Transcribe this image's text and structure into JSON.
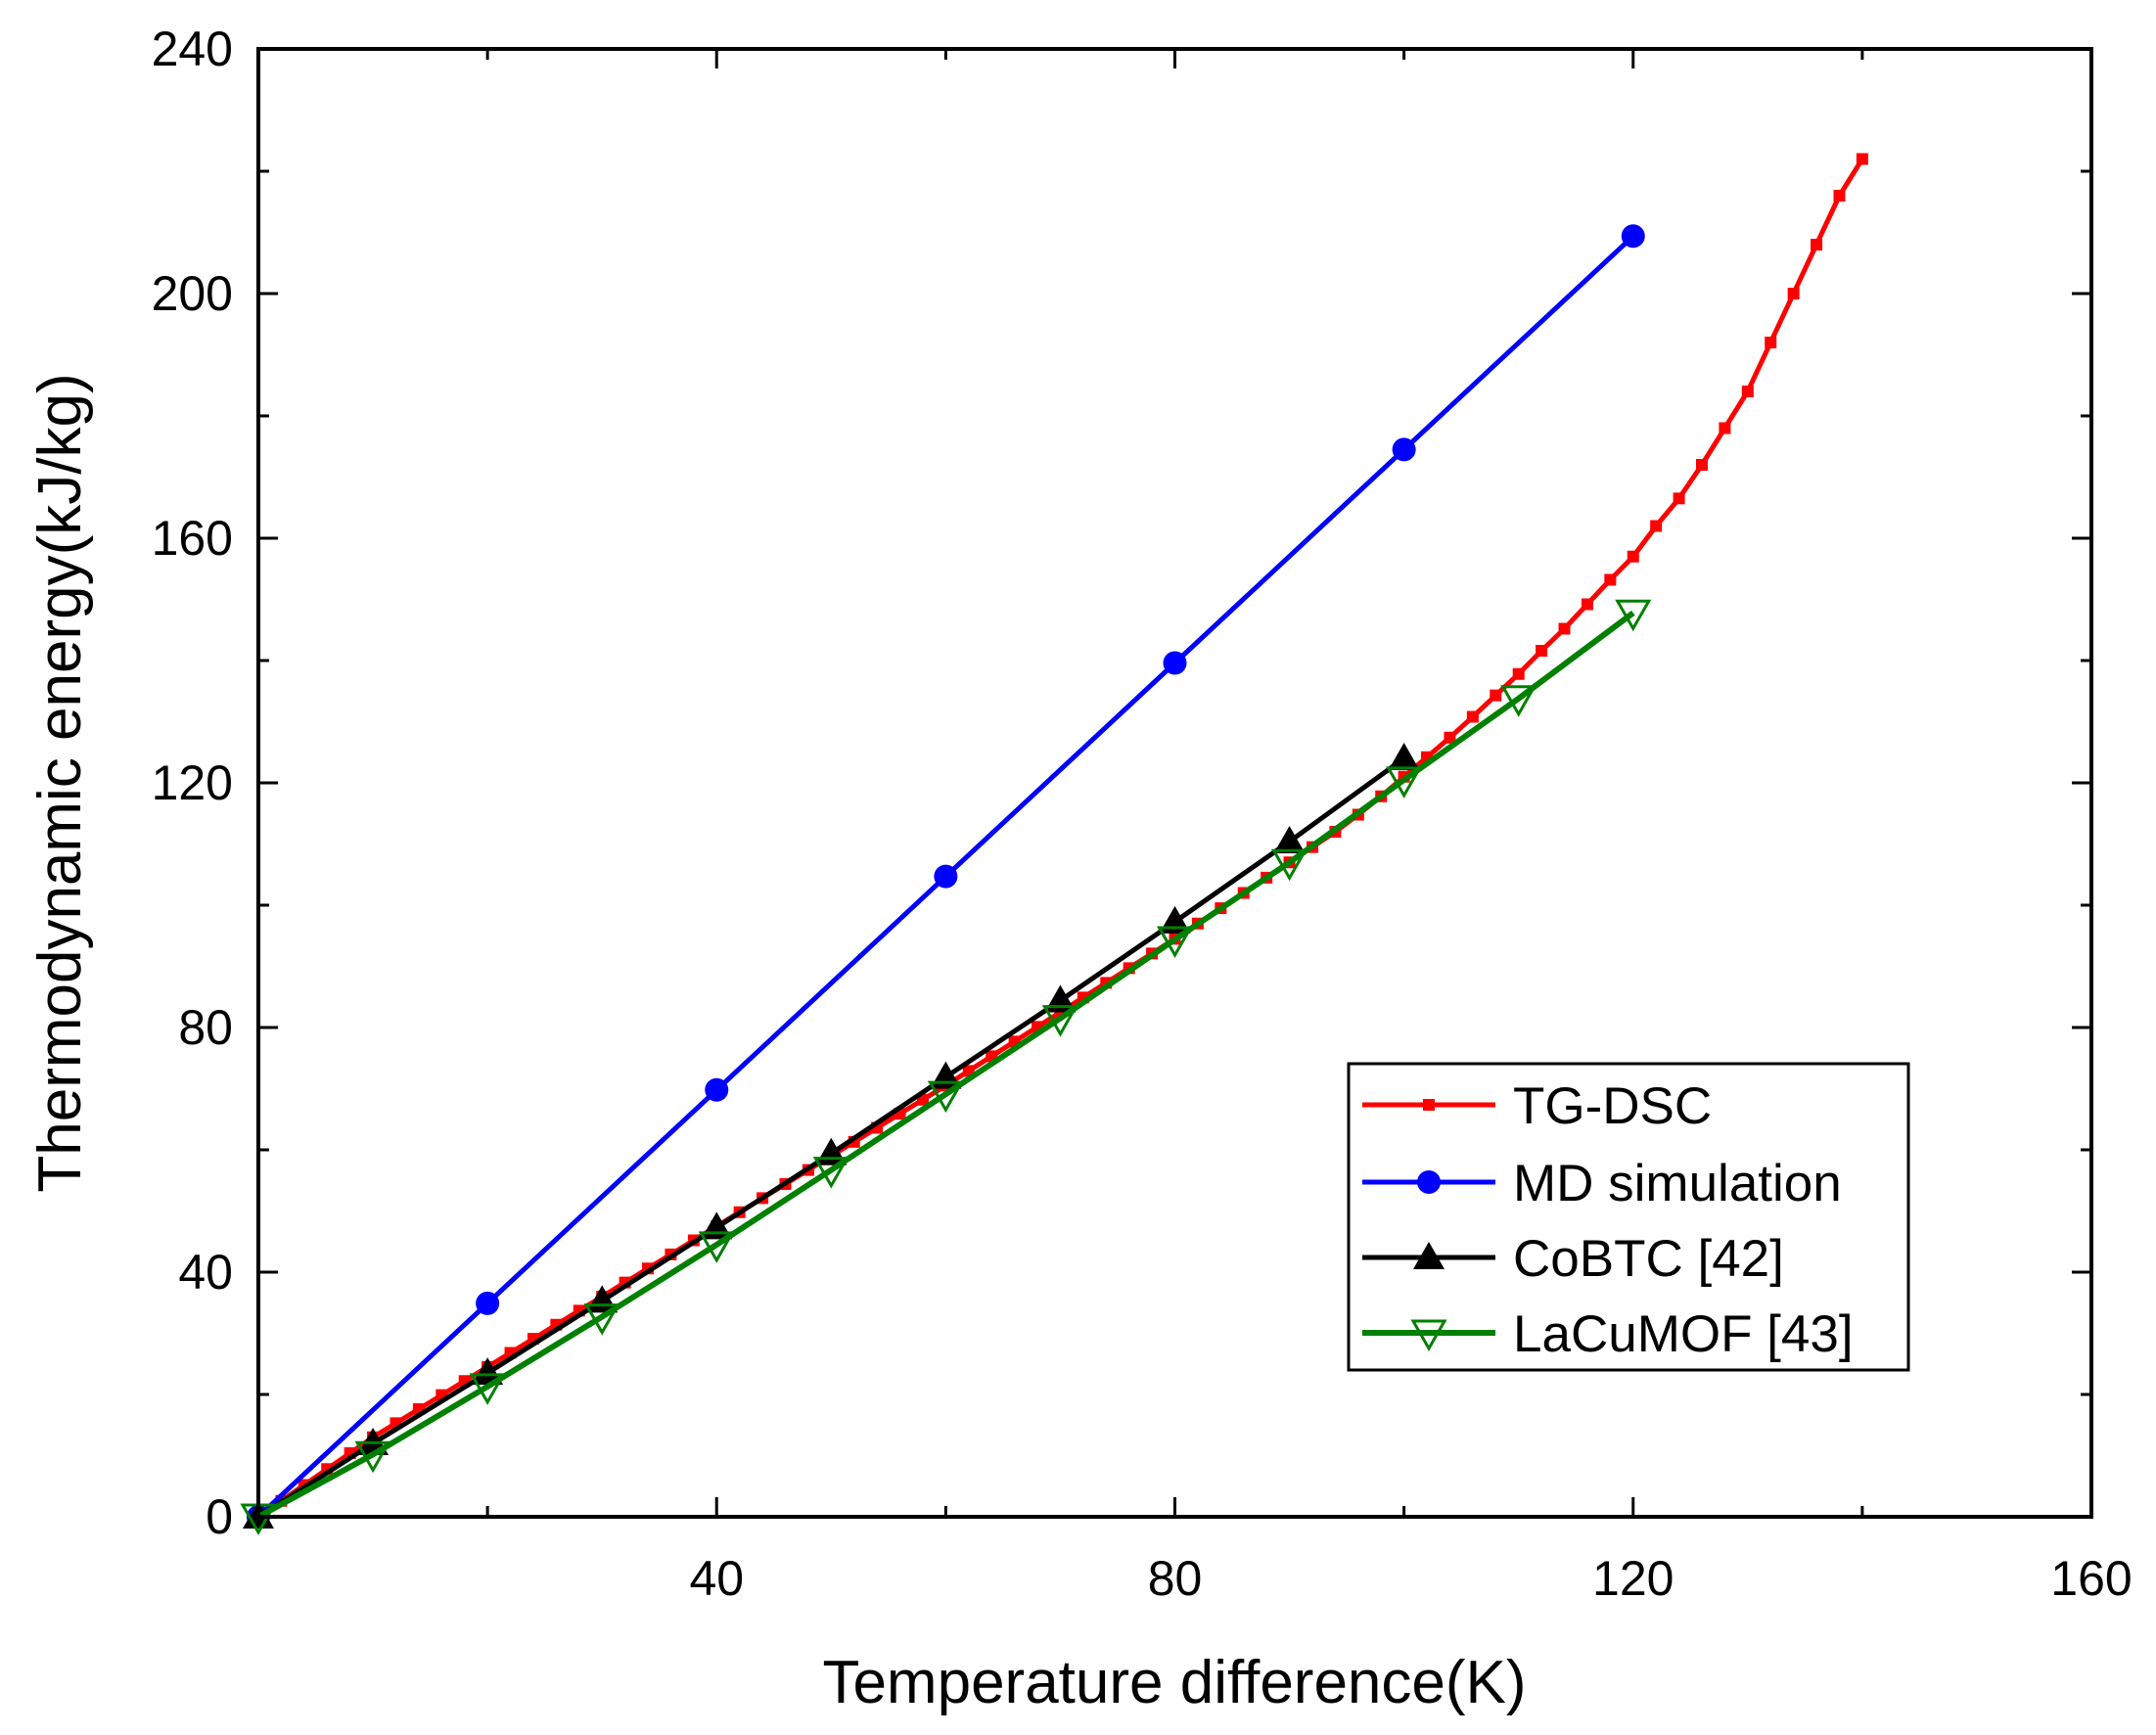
{
  "chart_data": {
    "type": "line",
    "title": "",
    "xlabel": "Temperature difference(K)",
    "ylabel": "Thermodynamic energy(kJ/kg)",
    "xlim": [
      0,
      160
    ],
    "ylim": [
      0,
      240
    ],
    "xticks": [
      40,
      80,
      120,
      160
    ],
    "yticks": [
      0,
      40,
      80,
      120,
      160,
      200,
      240
    ],
    "x_minor_step": 20,
    "y_minor_step": 20,
    "grid": false,
    "legend_position": "lower-right",
    "series": [
      {
        "name": "TG-DSC",
        "color": "#ff0000",
        "marker": "square-small",
        "x": [
          0,
          2,
          4,
          6,
          8,
          10,
          12,
          14,
          16,
          18,
          20,
          22,
          24,
          26,
          28,
          30,
          32,
          34,
          36,
          38,
          40,
          42,
          44,
          46,
          48,
          50,
          52,
          54,
          56,
          58,
          60,
          62,
          64,
          66,
          68,
          70,
          72,
          74,
          76,
          78,
          80,
          82,
          84,
          86,
          88,
          90,
          92,
          94,
          96,
          98,
          100,
          102,
          104,
          106,
          108,
          110,
          112,
          114,
          116,
          118,
          120,
          122,
          124,
          126,
          128,
          130,
          132,
          134,
          136,
          138,
          140
        ],
        "y": [
          0,
          2.6,
          5.2,
          7.8,
          10.4,
          13.0,
          15.3,
          17.6,
          19.9,
          22.2,
          24.5,
          26.8,
          29.1,
          31.4,
          33.7,
          36.0,
          38.3,
          40.6,
          42.9,
          45.2,
          47.5,
          49.8,
          52.1,
          54.4,
          56.7,
          59.0,
          61.3,
          63.6,
          65.9,
          68.2,
          70.5,
          72.9,
          75.3,
          77.7,
          80.1,
          82.5,
          84.9,
          87.3,
          89.7,
          92.1,
          94.5,
          97.0,
          99.5,
          102.0,
          104.5,
          107.0,
          109.5,
          112.0,
          114.8,
          117.8,
          121.0,
          124.2,
          127.4,
          130.8,
          134.3,
          137.8,
          141.6,
          145.2,
          149.2,
          153.2,
          157.0,
          162.0,
          166.5,
          172.0,
          178.0,
          184.0,
          192.0,
          200.0,
          208.0,
          216.0,
          222.0
        ]
      },
      {
        "name": "MD simulation",
        "color": "#0000ff",
        "marker": "circle",
        "x": [
          0,
          20,
          40,
          60,
          80,
          100,
          120
        ],
        "y": [
          0,
          34.9,
          69.8,
          104.7,
          139.6,
          174.5,
          209.4
        ]
      },
      {
        "name": "CoBTC [42]",
        "color": "#000000",
        "marker": "triangle-up",
        "x": [
          0,
          10,
          20,
          30,
          40,
          50,
          60,
          70,
          80,
          90,
          100
        ],
        "y": [
          0,
          12.0,
          23.5,
          35.3,
          47.3,
          59.4,
          71.9,
          84.4,
          97.3,
          110.4,
          124.0
        ]
      },
      {
        "name": "LaCuMOF [43]",
        "color": "#008000",
        "marker": "triangle-down-open",
        "x": [
          0,
          10,
          20,
          30,
          40,
          50,
          60,
          70,
          80,
          90,
          100,
          110,
          120
        ],
        "y": [
          0,
          10.2,
          21.3,
          32.7,
          44.5,
          56.7,
          69.1,
          81.5,
          94.4,
          107.0,
          120.5,
          133.8,
          147.8
        ]
      }
    ]
  }
}
